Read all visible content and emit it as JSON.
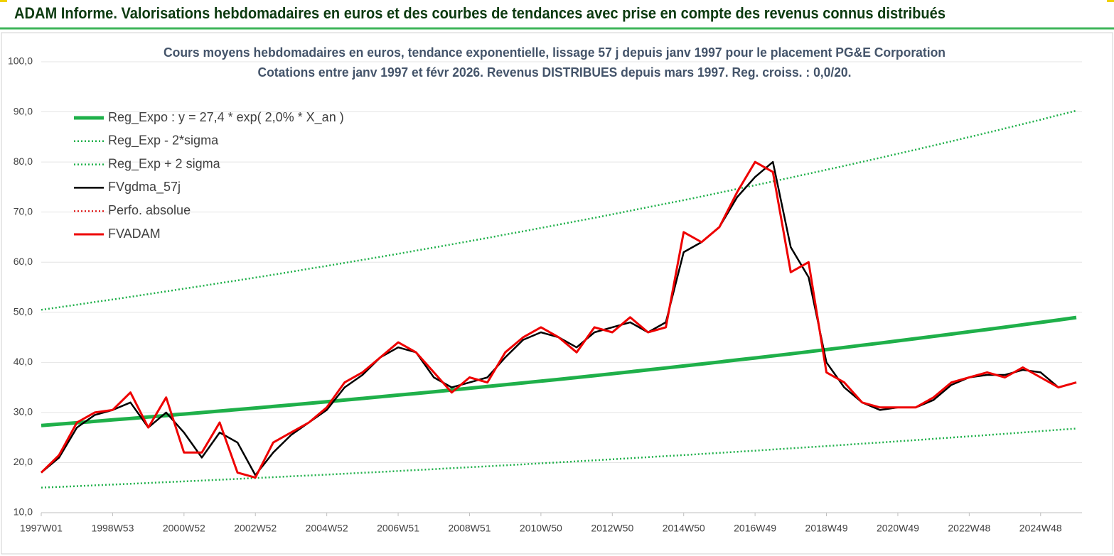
{
  "header": {
    "title": "ADAM Informe. Valorisations hebdomadaires en euros et des courbes de tendances avec prise en compte des revenus connus distribués"
  },
  "chart_data": {
    "type": "line",
    "title": "Cours moyens hebdomadaires en euros, tendance exponentielle, lissage 57 j depuis janv 1997 pour le placement PG&E Corporation",
    "subtitle": "Cotations entre janv 1997 et févr 2026. Revenus DISTRIBUES depuis mars 1997. Reg. croiss. : 0,0/20.",
    "x": [
      1997,
      1997.5,
      1998,
      1998.5,
      1999,
      1999.5,
      2000,
      2000.5,
      2001,
      2001.5,
      2002,
      2002.5,
      2003,
      2003.5,
      2004,
      2004.5,
      2005,
      2005.5,
      2006,
      2006.5,
      2007,
      2007.5,
      2008,
      2008.5,
      2009,
      2009.5,
      2010,
      2010.5,
      2011,
      2011.5,
      2012,
      2012.5,
      2013,
      2013.5,
      2014,
      2014.5,
      2015,
      2015.5,
      2016,
      2016.5,
      2017,
      2017.5,
      2018,
      2018.5,
      2019,
      2019.5,
      2020,
      2020.5,
      2021,
      2021.5,
      2022,
      2022.5,
      2023,
      2023.5,
      2024,
      2024.5,
      2025,
      2025.5,
      2026
    ],
    "xlim": [
      1997,
      2026.16
    ],
    "xticks": [
      {
        "value": 1997,
        "label": "1997W01"
      },
      {
        "value": 1999,
        "label": "1998W53"
      },
      {
        "value": 2001,
        "label": "2000W52"
      },
      {
        "value": 2003,
        "label": "2002W52"
      },
      {
        "value": 2005,
        "label": "2004W52"
      },
      {
        "value": 2007,
        "label": "2006W51"
      },
      {
        "value": 2009,
        "label": "2008W51"
      },
      {
        "value": 2011,
        "label": "2010W50"
      },
      {
        "value": 2013,
        "label": "2012W50"
      },
      {
        "value": 2015,
        "label": "2014W50"
      },
      {
        "value": 2017,
        "label": "2016W49"
      },
      {
        "value": 2019,
        "label": "2018W49"
      },
      {
        "value": 2021,
        "label": "2020W49"
      },
      {
        "value": 2023,
        "label": "2022W48"
      },
      {
        "value": 2025,
        "label": "2024W48"
      }
    ],
    "ylim": [
      10,
      100
    ],
    "yticks": [
      {
        "value": 10,
        "label": "10,0"
      },
      {
        "value": 20,
        "label": "20,0"
      },
      {
        "value": 30,
        "label": "30,0"
      },
      {
        "value": 40,
        "label": "40,0"
      },
      {
        "value": 50,
        "label": "50,0"
      },
      {
        "value": 60,
        "label": "60,0"
      },
      {
        "value": 70,
        "label": "70,0"
      },
      {
        "value": 80,
        "label": "80,0"
      },
      {
        "value": 90,
        "label": "90,0"
      },
      {
        "value": 100,
        "label": "100,0"
      }
    ],
    "grid": true,
    "legend": "top-left",
    "series": [
      {
        "name": "Reg_Expo : y = 27,4 * exp( 2,0% *  X_an )",
        "color": "#1fb04a",
        "style": "solid",
        "width": 5,
        "values": [
          27.4,
          27.68,
          27.95,
          28.23,
          28.52,
          28.8,
          29.09,
          29.39,
          29.68,
          29.98,
          30.28,
          30.58,
          30.89,
          31.2,
          31.52,
          31.83,
          32.15,
          32.48,
          32.8,
          33.13,
          33.47,
          33.8,
          34.14,
          34.49,
          34.83,
          35.18,
          35.54,
          35.9,
          36.26,
          36.62,
          36.99,
          37.36,
          37.74,
          38.12,
          38.5,
          38.89,
          39.28,
          39.68,
          40.08,
          40.48,
          40.88,
          41.3,
          41.71,
          42.13,
          42.56,
          42.98,
          43.42,
          43.85,
          44.3,
          44.74,
          45.19,
          45.65,
          46.11,
          46.57,
          47.04,
          47.51,
          47.99,
          48.47,
          48.96
        ]
      },
      {
        "name": "Reg_Exp - 2*sigma",
        "color": "#1fb04a",
        "style": "dotted",
        "width": 2.5,
        "values": [
          15.0,
          15.15,
          15.3,
          15.46,
          15.61,
          15.77,
          15.93,
          16.09,
          16.25,
          16.41,
          16.58,
          16.74,
          16.91,
          17.08,
          17.25,
          17.43,
          17.6,
          17.78,
          17.96,
          18.14,
          18.32,
          18.51,
          18.69,
          18.88,
          19.07,
          19.26,
          19.46,
          19.65,
          19.85,
          20.05,
          20.25,
          20.45,
          20.66,
          20.87,
          21.08,
          21.29,
          21.5,
          21.72,
          21.94,
          22.16,
          22.38,
          22.61,
          22.84,
          23.07,
          23.3,
          23.53,
          23.77,
          24.01,
          24.25,
          24.49,
          24.74,
          24.99,
          25.24,
          25.49,
          25.75,
          26.01,
          26.27,
          26.54,
          26.8
        ]
      },
      {
        "name": "Reg_Exp + 2 sigma",
        "color": "#1fb04a",
        "style": "dotted",
        "width": 2.5,
        "values": [
          50.5,
          51.01,
          51.51,
          52.05,
          52.55,
          53.09,
          53.63,
          54.17,
          54.71,
          55.25,
          55.82,
          56.36,
          56.93,
          57.5,
          58.08,
          58.68,
          59.25,
          59.86,
          60.46,
          61.07,
          61.68,
          62.32,
          62.92,
          63.56,
          64.2,
          64.84,
          65.52,
          66.15,
          66.83,
          67.5,
          68.18,
          68.85,
          69.56,
          70.26,
          70.97,
          71.68,
          72.38,
          73.12,
          73.86,
          74.61,
          75.35,
          76.12,
          76.89,
          77.67,
          78.44,
          79.22,
          80.03,
          80.83,
          81.64,
          82.45,
          83.29,
          84.13,
          84.98,
          85.82,
          86.69,
          87.57,
          88.44,
          89.35,
          90.23
        ]
      },
      {
        "name": "FVgdma_57j",
        "color": "#000000",
        "style": "solid",
        "width": 2.5,
        "values": [
          18,
          21,
          27,
          29.5,
          30.5,
          32,
          27,
          30,
          26,
          21,
          26,
          24,
          17.5,
          22,
          25.5,
          28,
          30.5,
          35,
          37.5,
          41,
          43,
          42,
          37,
          35,
          36,
          37,
          41,
          44.5,
          46,
          45,
          43,
          46,
          47,
          48,
          46,
          48,
          62,
          64,
          67,
          73,
          77,
          80,
          63,
          57,
          40,
          35,
          32,
          30.5,
          31,
          31,
          32.5,
          35.5,
          37,
          37.5,
          37.5,
          38.5,
          38,
          35,
          36
        ]
      },
      {
        "name": "Perfo. absolue",
        "color": "#e00000",
        "style": "dotted",
        "width": 2,
        "values": [
          null,
          null,
          null,
          null,
          null,
          null,
          null,
          null,
          null,
          null,
          null,
          null,
          null,
          null,
          null,
          null,
          null,
          null,
          null,
          null,
          null,
          null,
          null,
          null,
          null,
          null,
          null,
          null,
          null,
          null,
          null,
          null,
          null,
          null,
          null,
          null,
          null,
          null,
          null,
          null,
          null,
          null,
          null,
          null,
          null,
          null,
          null,
          null,
          null,
          null,
          null,
          null,
          null,
          null,
          null,
          null,
          null,
          null,
          null
        ]
      },
      {
        "name": "FVADAM",
        "color": "#ee0000",
        "style": "solid",
        "width": 3,
        "values": [
          18,
          21.5,
          28,
          30,
          30.5,
          34,
          27,
          33,
          22,
          22,
          28,
          18,
          17,
          24,
          26,
          28,
          31,
          36,
          38,
          41,
          44,
          42,
          38,
          34,
          37,
          36,
          42,
          45,
          47,
          45,
          42,
          47,
          46,
          49,
          46,
          47,
          66,
          64,
          67,
          74,
          80,
          78,
          58,
          60,
          38,
          36,
          32,
          31,
          31,
          31,
          33,
          36,
          37,
          38,
          37,
          39,
          37,
          35,
          36
        ]
      }
    ]
  }
}
